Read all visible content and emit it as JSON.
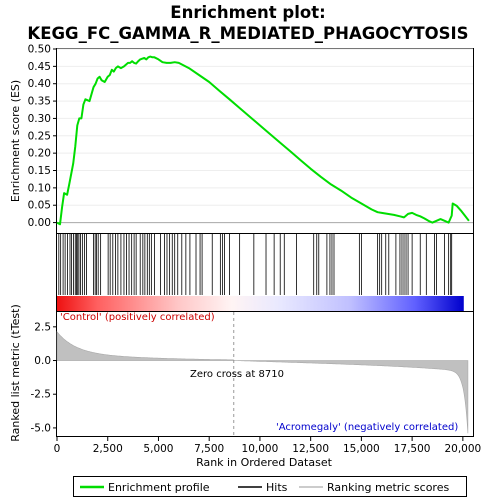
{
  "chart_data": {
    "type": "line",
    "title": "Enrichment plot: KEGG_FC_GAMMA_R_MEDIATED_PHAGOCYTOSIS",
    "xlabel": "Rank in Ordered Dataset",
    "ylabel_top": "Enrichment score (ES)",
    "ylabel_bottom": "Ranked list metric (tTest)",
    "xlim": [
      0,
      20500
    ],
    "ylim_top": [
      -0.03,
      0.5
    ],
    "ylim_bottom": [
      -5.6,
      3.6
    ],
    "x_ticks": [
      0,
      2500,
      5000,
      7500,
      10000,
      12500,
      15000,
      17500,
      20000
    ],
    "x_tick_labels": [
      "0",
      "2,500",
      "5,000",
      "7,500",
      "10,000",
      "12,500",
      "15,000",
      "17,500",
      "20,000"
    ],
    "y_ticks_top": [
      0.0,
      0.05,
      0.1,
      0.15,
      0.2,
      0.25,
      0.3,
      0.35,
      0.4,
      0.45,
      0.5
    ],
    "y_tick_labels_top": [
      "0.00",
      "0.05",
      "0.10",
      "0.15",
      "0.20",
      "0.25",
      "0.30",
      "0.35",
      "0.40",
      "0.45",
      "0.50"
    ],
    "y_ticks_bottom": [
      2.5,
      0.0,
      -2.5,
      -5.0
    ],
    "y_tick_labels_bottom": [
      "2.5",
      "0.0",
      "-2.5",
      "-5.0"
    ],
    "zero_cross_rank": 8710,
    "annotations": {
      "positive": "'Control' (positively correlated)",
      "negative": "'Acromegaly' (negatively correlated)",
      "zero_cross": "Zero cross at 8710"
    },
    "series": [
      {
        "name": "Enrichment profile",
        "color": "#00dd00",
        "x": [
          0,
          150,
          250,
          350,
          500,
          600,
          700,
          800,
          900,
          1000,
          1100,
          1200,
          1300,
          1400,
          1600,
          1800,
          1900,
          2000,
          2100,
          2200,
          2350,
          2500,
          2600,
          2700,
          2800,
          2900,
          3000,
          3150,
          3300,
          3400,
          3500,
          3600,
          3700,
          3800,
          3900,
          4000,
          4100,
          4200,
          4300,
          4400,
          4500,
          4600,
          4700,
          4800,
          5000,
          5200,
          5400,
          5600,
          5800,
          6000,
          6500,
          7000,
          7500,
          8000,
          8500,
          9000,
          9500,
          10000,
          10500,
          11000,
          11500,
          12000,
          12500,
          13000,
          13500,
          14000,
          14500,
          15000,
          15500,
          15800,
          16000,
          16300,
          16600,
          16900,
          17100,
          17300,
          17500,
          17700,
          17900,
          18100,
          18300,
          18500,
          18700,
          18900,
          19100,
          19300,
          19450,
          19500,
          19700,
          19900,
          20100,
          20300
        ],
        "y": [
          0.0,
          -0.005,
          0.045,
          0.085,
          0.08,
          0.11,
          0.14,
          0.17,
          0.22,
          0.28,
          0.3,
          0.3,
          0.34,
          0.355,
          0.35,
          0.39,
          0.4,
          0.415,
          0.42,
          0.41,
          0.405,
          0.42,
          0.425,
          0.44,
          0.435,
          0.445,
          0.45,
          0.445,
          0.45,
          0.455,
          0.46,
          0.46,
          0.465,
          0.46,
          0.458,
          0.465,
          0.47,
          0.472,
          0.474,
          0.47,
          0.476,
          0.478,
          0.476,
          0.476,
          0.47,
          0.462,
          0.46,
          0.46,
          0.462,
          0.46,
          0.445,
          0.425,
          0.405,
          0.38,
          0.355,
          0.33,
          0.305,
          0.28,
          0.255,
          0.23,
          0.205,
          0.18,
          0.155,
          0.132,
          0.11,
          0.092,
          0.072,
          0.055,
          0.038,
          0.03,
          0.028,
          0.025,
          0.022,
          0.018,
          0.015,
          0.025,
          0.028,
          0.022,
          0.018,
          0.012,
          0.005,
          0.0,
          0.005,
          0.01,
          0.005,
          0.0,
          0.02,
          0.055,
          0.048,
          0.035,
          0.02,
          0.005
        ]
      }
    ],
    "hits": [
      90,
      180,
      300,
      400,
      520,
      640,
      720,
      810,
      900,
      960,
      1020,
      1080,
      1160,
      1250,
      1350,
      1450,
      1800,
      1880,
      1950,
      2030,
      2150,
      2520,
      2620,
      2750,
      2880,
      3000,
      3150,
      3300,
      3420,
      3550,
      3680,
      3800,
      3900,
      4100,
      4230,
      4330,
      4450,
      4550,
      4650,
      4800,
      5100,
      5300,
      5420,
      5550,
      5680,
      5800,
      5950,
      6150,
      6350,
      6550,
      6850,
      7050,
      7150,
      7650,
      8050,
      8150,
      8250,
      8500,
      9000,
      9700,
      10300,
      10700,
      11000,
      11200,
      11800,
      12650,
      12800,
      12900,
      13300,
      13450,
      13550,
      13650,
      14900,
      15000,
      15800,
      15900,
      16000,
      16200,
      16350,
      16700,
      16900,
      17000,
      17100,
      17200,
      17300,
      17500,
      17900,
      18200,
      18600,
      18700,
      19100,
      19300,
      19400,
      19450
    ],
    "legend": [
      "Enrichment profile",
      "Hits",
      "Ranking metric scores"
    ]
  }
}
